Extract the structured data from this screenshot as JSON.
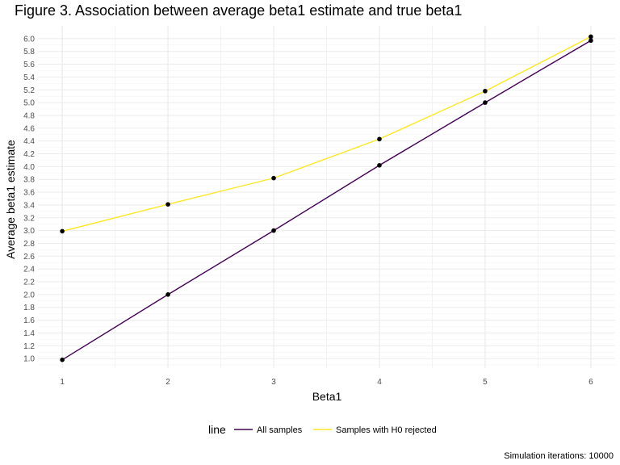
{
  "chart_data": {
    "type": "line",
    "title": "Figure 3. Association between average beta1 estimate and true beta1",
    "xlabel": "Beta1",
    "ylabel": "Average beta1 estimate",
    "x": [
      1,
      2,
      3,
      4,
      5,
      6
    ],
    "xlim": [
      0.77,
      6.23
    ],
    "ylim": [
      0.85,
      6.2
    ],
    "x_ticks": [
      "1",
      "2",
      "3",
      "4",
      "5",
      "6"
    ],
    "y_ticks": [
      "1.0",
      "1.2",
      "1.4",
      "1.6",
      "1.8",
      "2.0",
      "2.2",
      "2.4",
      "2.6",
      "2.8",
      "3.0",
      "3.2",
      "3.4",
      "3.6",
      "3.8",
      "4.0",
      "4.2",
      "4.4",
      "4.6",
      "4.8",
      "5.0",
      "5.2",
      "5.4",
      "5.6",
      "5.8",
      "6.0"
    ],
    "series": [
      {
        "name": "All samples",
        "color": "#440154",
        "values": [
          0.98,
          2.0,
          3.0,
          4.02,
          5.0,
          5.97
        ]
      },
      {
        "name": "Samples with H0 rejected",
        "color": "#fde725",
        "values": [
          2.99,
          3.41,
          3.82,
          4.43,
          5.18,
          6.03
        ]
      }
    ],
    "grid": true,
    "legend_title": "line",
    "legend_position": "bottom",
    "caption": "Simulation iterations: 10000"
  }
}
